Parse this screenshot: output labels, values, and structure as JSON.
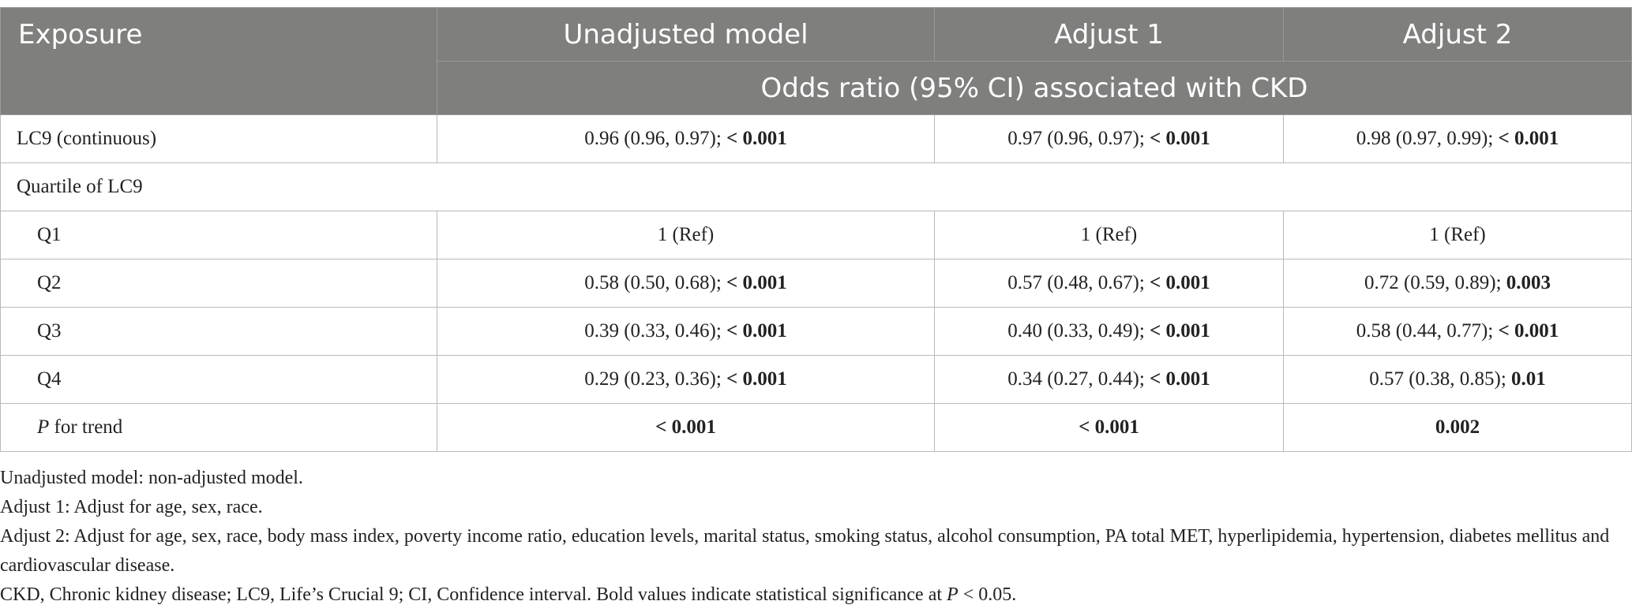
{
  "header": {
    "exposure": "Exposure",
    "unadjusted": "Unadjusted model",
    "adjust1": "Adjust 1",
    "adjust2": "Adjust 2",
    "subheader": "Odds ratio (95% CI) associated with CKD"
  },
  "rows": {
    "lc9": {
      "label": "LC9 (continuous)",
      "c1_est": "0.96 (0.96, 0.97);",
      "c1_p": "< 0.001",
      "c2_est": "0.97 (0.96, 0.97);",
      "c2_p": "< 0.001",
      "c3_est": "0.98 (0.97, 0.99);",
      "c3_p": "< 0.001"
    },
    "quartile": {
      "label": "Quartile of LC9"
    },
    "q1": {
      "label": "Q1",
      "c1": "1 (Ref)",
      "c2": "1 (Ref)",
      "c3": "1 (Ref)"
    },
    "q2": {
      "label": "Q2",
      "c1_est": "0.58 (0.50, 0.68);",
      "c1_p": "< 0.001",
      "c2_est": "0.57 (0.48, 0.67);",
      "c2_p": "< 0.001",
      "c3_est": "0.72 (0.59, 0.89);",
      "c3_p": "0.003"
    },
    "q3": {
      "label": "Q3",
      "c1_est": "0.39 (0.33, 0.46);",
      "c1_p": "< 0.001",
      "c2_est": "0.40 (0.33, 0.49);",
      "c2_p": "< 0.001",
      "c3_est": "0.58 (0.44, 0.77);",
      "c3_p": "< 0.001"
    },
    "q4": {
      "label": "Q4",
      "c1_est": "0.29 (0.23, 0.36);",
      "c1_p": "< 0.001",
      "c2_est": "0.34 (0.27, 0.44);",
      "c2_p": "< 0.001",
      "c3_est": "0.57 (0.38, 0.85);",
      "c3_p": "0.01"
    },
    "trend": {
      "label_p": "P",
      "label_rest": " for trend",
      "c1": "< 0.001",
      "c2": "< 0.001",
      "c3": "0.002"
    }
  },
  "notes": {
    "unadjusted": "Unadjusted model: non-adjusted model.",
    "adjust1": "Adjust 1: Adjust for age, sex, race.",
    "adjust2": "Adjust 2: Adjust for age, sex, race, body mass index, poverty income ratio, education levels, marital status, smoking status, alcohol consumption, PA total MET, hyperlipidemia, hypertension, diabetes mellitus and cardiovascular disease.",
    "abbrev_main": "CKD, Chronic kidney disease; LC9, Life’s Crucial 9; CI, Confidence interval. Bold values indicate statistical significance at ",
    "abbrev_p": "P",
    "abbrev_end": " < 0.05."
  }
}
